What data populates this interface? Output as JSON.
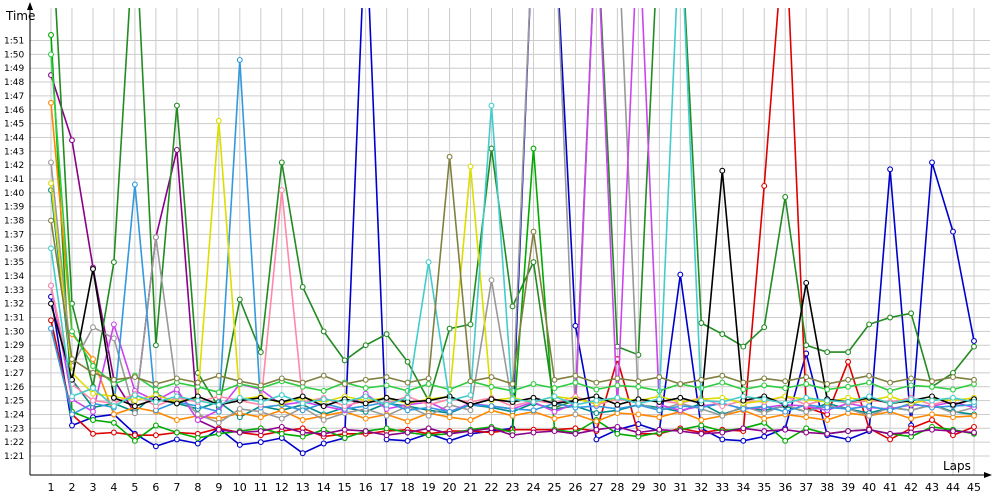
{
  "chart_data": {
    "type": "line",
    "title": "",
    "xlabel": "Laps",
    "ylabel": "Time",
    "x": [
      1,
      2,
      3,
      4,
      5,
      6,
      7,
      8,
      9,
      10,
      11,
      12,
      13,
      14,
      15,
      16,
      17,
      18,
      19,
      20,
      21,
      22,
      23,
      24,
      25,
      26,
      27,
      28,
      29,
      30,
      31,
      32,
      33,
      34,
      35,
      36,
      37,
      38,
      39,
      40,
      41,
      42,
      43,
      44,
      45
    ],
    "x_tick_labels": [
      "1",
      "2",
      "3",
      "4",
      "5",
      "6",
      "7",
      "8",
      "9",
      "10",
      "11",
      "12",
      "13",
      "14",
      "15",
      "16",
      "17",
      "18",
      "19",
      "20",
      "21",
      "22",
      "23",
      "24",
      "25",
      "26",
      "27",
      "28",
      "29",
      "30",
      "31",
      "32",
      "33",
      "34",
      "35",
      "36",
      "37",
      "38",
      "39",
      "40",
      "41",
      "42",
      "43",
      "44",
      "45"
    ],
    "y_tick_labels": [
      "1:21",
      "1:22",
      "1:23",
      "1:24",
      "1:25",
      "1:26",
      "1:27",
      "1:28",
      "1:29",
      "1:30",
      "1:31",
      "1:32",
      "1:33",
      "1:34",
      "1:35",
      "1:36",
      "1:37",
      "1:38",
      "1:39",
      "1:40",
      "1:41",
      "1:42",
      "1:43",
      "1:44",
      "1:45",
      "1:46",
      "1:47",
      "1:48",
      "1:49",
      "1:50",
      "1:51"
    ],
    "y_unit": "seconds",
    "ylim": [
      80,
      112
    ],
    "grid": true,
    "legend": "none",
    "series": [
      {
        "color": "#0000cc",
        "values": [
          92.5,
          83.2,
          83.8,
          84.0,
          82.6,
          81.7,
          82.2,
          81.9,
          83.0,
          81.8,
          82.0,
          82.3,
          81.2,
          81.9,
          82.3,
          120,
          82.2,
          82.1,
          82.6,
          82.1,
          82.6,
          82.8,
          83.0,
          120,
          120,
          90.4,
          82.2,
          82.9,
          83.3,
          82.8,
          94.1,
          83.0,
          82.2,
          82.1,
          82.4,
          83.0,
          88.4,
          82.5,
          82.2,
          82.8,
          101.7,
          83.2,
          102.2,
          97.2,
          89.3
        ]
      },
      {
        "color": "#dd0000",
        "values": [
          90.8,
          84.0,
          82.6,
          82.7,
          82.5,
          82.5,
          82.7,
          82.6,
          83.0,
          82.7,
          82.5,
          82.8,
          83.0,
          82.4,
          82.6,
          82.6,
          82.8,
          82.9,
          82.6,
          82.8,
          82.8,
          82.7,
          82.9,
          82.9,
          82.9,
          83.0,
          82.8,
          88.0,
          82.6,
          82.6,
          83.0,
          82.7,
          82.9,
          82.8,
          100.5,
          120,
          84.5,
          84.0,
          87.8,
          83.0,
          82.2,
          83.0,
          83.6,
          82.5,
          83.1
        ]
      },
      {
        "color": "#00aa00",
        "values": [
          111.4,
          84.2,
          83.6,
          83.4,
          82.1,
          83.2,
          82.7,
          82.3,
          82.6,
          82.8,
          83.0,
          82.6,
          82.4,
          82.9,
          82.3,
          82.8,
          83.0,
          82.7,
          82.5,
          82.6,
          82.9,
          83.1,
          82.7,
          103.2,
          82.9,
          82.7,
          83.6,
          82.6,
          82.4,
          82.7,
          82.9,
          83.2,
          82.8,
          83.0,
          83.4,
          82.1,
          83.0,
          82.6,
          82.8,
          82.9,
          82.6,
          82.4,
          83.1,
          82.9,
          82.6
        ]
      },
      {
        "color": "#8b008b",
        "values": [
          108.5,
          103.8,
          94.6,
          86.5,
          84.1,
          96.8,
          103.1,
          83.6,
          82.9,
          82.7,
          82.8,
          83.1,
          82.7,
          82.6,
          82.9,
          82.8,
          82.5,
          82.7,
          83.0,
          82.6,
          82.8,
          83.0,
          82.5,
          82.7,
          82.8,
          82.6,
          82.9,
          83.1,
          82.7,
          82.9,
          82.8,
          82.6,
          82.7,
          83.0,
          82.8,
          82.9,
          82.7,
          82.6,
          82.8,
          82.9,
          82.6,
          82.7,
          82.9,
          82.8,
          82.7
        ]
      },
      {
        "color": "#008b8b",
        "values": [
          100.2,
          86.5,
          84.5,
          84.8,
          84.2,
          85.5,
          84.8,
          84.4,
          84.9,
          83.8,
          84.6,
          84.3,
          84.7,
          84.0,
          84.5,
          84.2,
          84.8,
          84.6,
          84.3,
          84.1,
          84.7,
          84.5,
          84.2,
          84.8,
          84.4,
          84.6,
          84.1,
          84.3,
          84.7,
          84.5,
          84.2,
          84.8,
          84.0,
          84.5,
          84.3,
          84.6,
          84.2,
          84.8,
          84.4,
          84.1,
          84.5,
          84.3,
          84.7,
          84.2,
          84.0
        ]
      },
      {
        "color": "#ff8800",
        "values": [
          106.5,
          89.8,
          88.0,
          84.0,
          84.5,
          84.2,
          83.6,
          83.9,
          83.7,
          84.1,
          83.8,
          84.3,
          83.6,
          83.9,
          84.2,
          83.7,
          84.0,
          83.5,
          84.1,
          83.8,
          83.6,
          84.3,
          83.9,
          84.2,
          83.7,
          84.0,
          83.5,
          84.1,
          84.0,
          83.8,
          84.2,
          83.6,
          83.9,
          84.3,
          83.7,
          84.0,
          83.8,
          83.6,
          84.1,
          83.9,
          84.2,
          83.7,
          84.0,
          83.8,
          83.9
        ]
      },
      {
        "color": "#228b22",
        "values": [
          120,
          92.0,
          86.0,
          95.0,
          120,
          89.0,
          106.3,
          87.0,
          84.5,
          92.3,
          88.5,
          102.2,
          93.2,
          90.0,
          87.9,
          89.0,
          89.8,
          87.8,
          85.0,
          90.2,
          90.5,
          103.2,
          91.8,
          95.0,
          84.5,
          85.0,
          120,
          88.9,
          88.3,
          120,
          120,
          90.6,
          89.8,
          88.9,
          90.3,
          99.7,
          89.0,
          88.5,
          88.5,
          90.5,
          91.0,
          91.3,
          86.0,
          87.0,
          88.9
        ]
      },
      {
        "color": "#999999",
        "values": [
          102.2,
          87.5,
          90.3,
          89.5,
          84.1,
          96.8,
          85.6,
          84.0,
          83.4,
          84.4,
          84.2,
          83.7,
          84.5,
          83.6,
          84.1,
          84.4,
          83.9,
          84.6,
          83.9,
          84.7,
          84.3,
          93.7,
          84.6,
          120,
          120,
          84.0,
          120,
          120,
          84.8,
          84.3,
          84.8,
          84.4,
          83.9,
          84.6,
          84.1,
          84.7,
          84.2,
          84.6,
          84.4,
          83.9,
          84.5,
          84.3,
          84.7,
          84.1,
          84.5
        ]
      },
      {
        "color": "#cc44ee",
        "values": [
          93.3,
          85.1,
          84.2,
          90.5,
          85.7,
          85.0,
          85.8,
          83.6,
          84.3,
          86.2,
          85.8,
          84.7,
          84.9,
          84.6,
          84.3,
          85.5,
          84.4,
          84.7,
          84.9,
          84.2,
          84.8,
          84.6,
          84.4,
          84.9,
          84.2,
          84.8,
          120,
          84.5,
          120,
          84.7,
          84.3,
          84.6,
          84.8,
          84.4,
          84.5,
          84.7,
          84.6,
          84.3,
          84.8,
          84.5,
          84.4,
          84.7,
          84.6,
          84.9,
          84.5
        ]
      },
      {
        "color": "#3399dd",
        "values": [
          90.2,
          84.0,
          84.8,
          84.5,
          100.6,
          84.3,
          84.9,
          84.6,
          84.2,
          109.6,
          84.5,
          84.7,
          84.3,
          84.8,
          84.4,
          84.6,
          84.9,
          84.3,
          84.5,
          84.2,
          84.7,
          84.6,
          84.4,
          84.3,
          84.8,
          84.5,
          84.6,
          84.4,
          84.7,
          84.3,
          84.6,
          84.5,
          84.8,
          84.4,
          84.6,
          84.2,
          84.7,
          84.5,
          84.4,
          84.6,
          84.3,
          84.8,
          84.5,
          84.6,
          84.7
        ]
      },
      {
        "color": "#ff88aa",
        "values": [
          93.3,
          86.2,
          85.0,
          84.8,
          85.5,
          84.6,
          85.2,
          84.9,
          85.3,
          85.0,
          84.7,
          100.2,
          84.9,
          85.2,
          84.6,
          85.0,
          84.8,
          85.3,
          84.7,
          85.1,
          84.9,
          85.2,
          84.6,
          85.0,
          84.8,
          85.3,
          84.7,
          85.1,
          84.9,
          85.0,
          84.8,
          85.2,
          84.6,
          85.0,
          84.9,
          85.3,
          84.7,
          85.1,
          84.8,
          85.0,
          84.9,
          85.2,
          84.7,
          85.1,
          84.9
        ]
      },
      {
        "color": "#dddd00",
        "values": [
          100.7,
          87.0,
          85.5,
          85.3,
          85.0,
          85.4,
          84.9,
          85.2,
          105.2,
          85.1,
          85.3,
          84.8,
          85.2,
          84.9,
          85.3,
          85.0,
          85.2,
          84.8,
          85.1,
          85.3,
          101.9,
          85.0,
          85.2,
          84.9,
          85.3,
          85.1,
          84.8,
          85.2,
          85.0,
          85.3,
          84.9,
          85.1,
          85.2,
          84.8,
          85.0,
          85.3,
          85.1,
          84.9,
          85.2,
          85.0,
          85.3,
          84.8,
          85.1,
          85.0,
          85.2
        ]
      },
      {
        "color": "#000000",
        "values": [
          92.0,
          86.5,
          94.5,
          85.2,
          84.6,
          85.1,
          84.8,
          85.3,
          84.7,
          85.0,
          85.2,
          84.9,
          85.3,
          84.6,
          85.1,
          84.8,
          85.2,
          84.9,
          85.0,
          85.3,
          84.7,
          85.1,
          84.9,
          85.2,
          84.8,
          85.0,
          85.3,
          84.7,
          85.1,
          84.9,
          85.2,
          84.8,
          101.6,
          85.0,
          85.3,
          84.7,
          93.5,
          85.1,
          84.9,
          85.2,
          84.8,
          85.0,
          85.3,
          84.7,
          85.1
        ]
      },
      {
        "color": "#2ecc40",
        "values": [
          110.0,
          90.0,
          87.5,
          86.2,
          86.8,
          85.8,
          86.3,
          86.0,
          85.6,
          86.2,
          85.9,
          86.4,
          86.0,
          85.7,
          86.3,
          85.9,
          86.1,
          85.7,
          86.2,
          85.8,
          86.4,
          86.0,
          85.7,
          86.2,
          85.9,
          86.3,
          85.8,
          86.1,
          86.0,
          85.7,
          86.2,
          85.9,
          86.3,
          85.8,
          86.1,
          85.9,
          86.2,
          85.8,
          86.0,
          86.3,
          85.7,
          86.1,
          86.0,
          85.8,
          86.2
        ]
      },
      {
        "color": "#44cccc",
        "values": [
          96.0,
          85.3,
          85.9,
          84.6,
          85.4,
          84.9,
          85.3,
          85.0,
          84.7,
          85.2,
          84.9,
          85.4,
          84.8,
          85.1,
          84.9,
          85.3,
          84.7,
          85.2,
          95.0,
          85.0,
          85.4,
          106.3,
          85.1,
          84.9,
          85.3,
          84.7,
          85.0,
          85.2,
          84.8,
          85.1,
          120,
          85.0,
          84.9,
          85.3,
          85.1,
          84.8,
          85.2,
          85.0,
          84.9,
          85.3,
          84.8,
          85.1,
          85.0,
          85.2,
          84.9
        ]
      },
      {
        "color": "#808040",
        "values": [
          98.0,
          88.0,
          87.0,
          86.5,
          86.7,
          86.2,
          86.6,
          86.3,
          86.8,
          86.4,
          86.1,
          86.6,
          86.3,
          86.8,
          86.2,
          86.5,
          86.7,
          86.3,
          86.6,
          102.6,
          86.4,
          86.7,
          86.2,
          97.2,
          86.5,
          86.8,
          86.3,
          86.6,
          86.4,
          86.7,
          86.2,
          86.5,
          86.8,
          86.3,
          86.6,
          86.4,
          86.7,
          86.2,
          86.5,
          86.8,
          86.3,
          86.6,
          86.4,
          86.7,
          86.5
        ]
      }
    ]
  }
}
